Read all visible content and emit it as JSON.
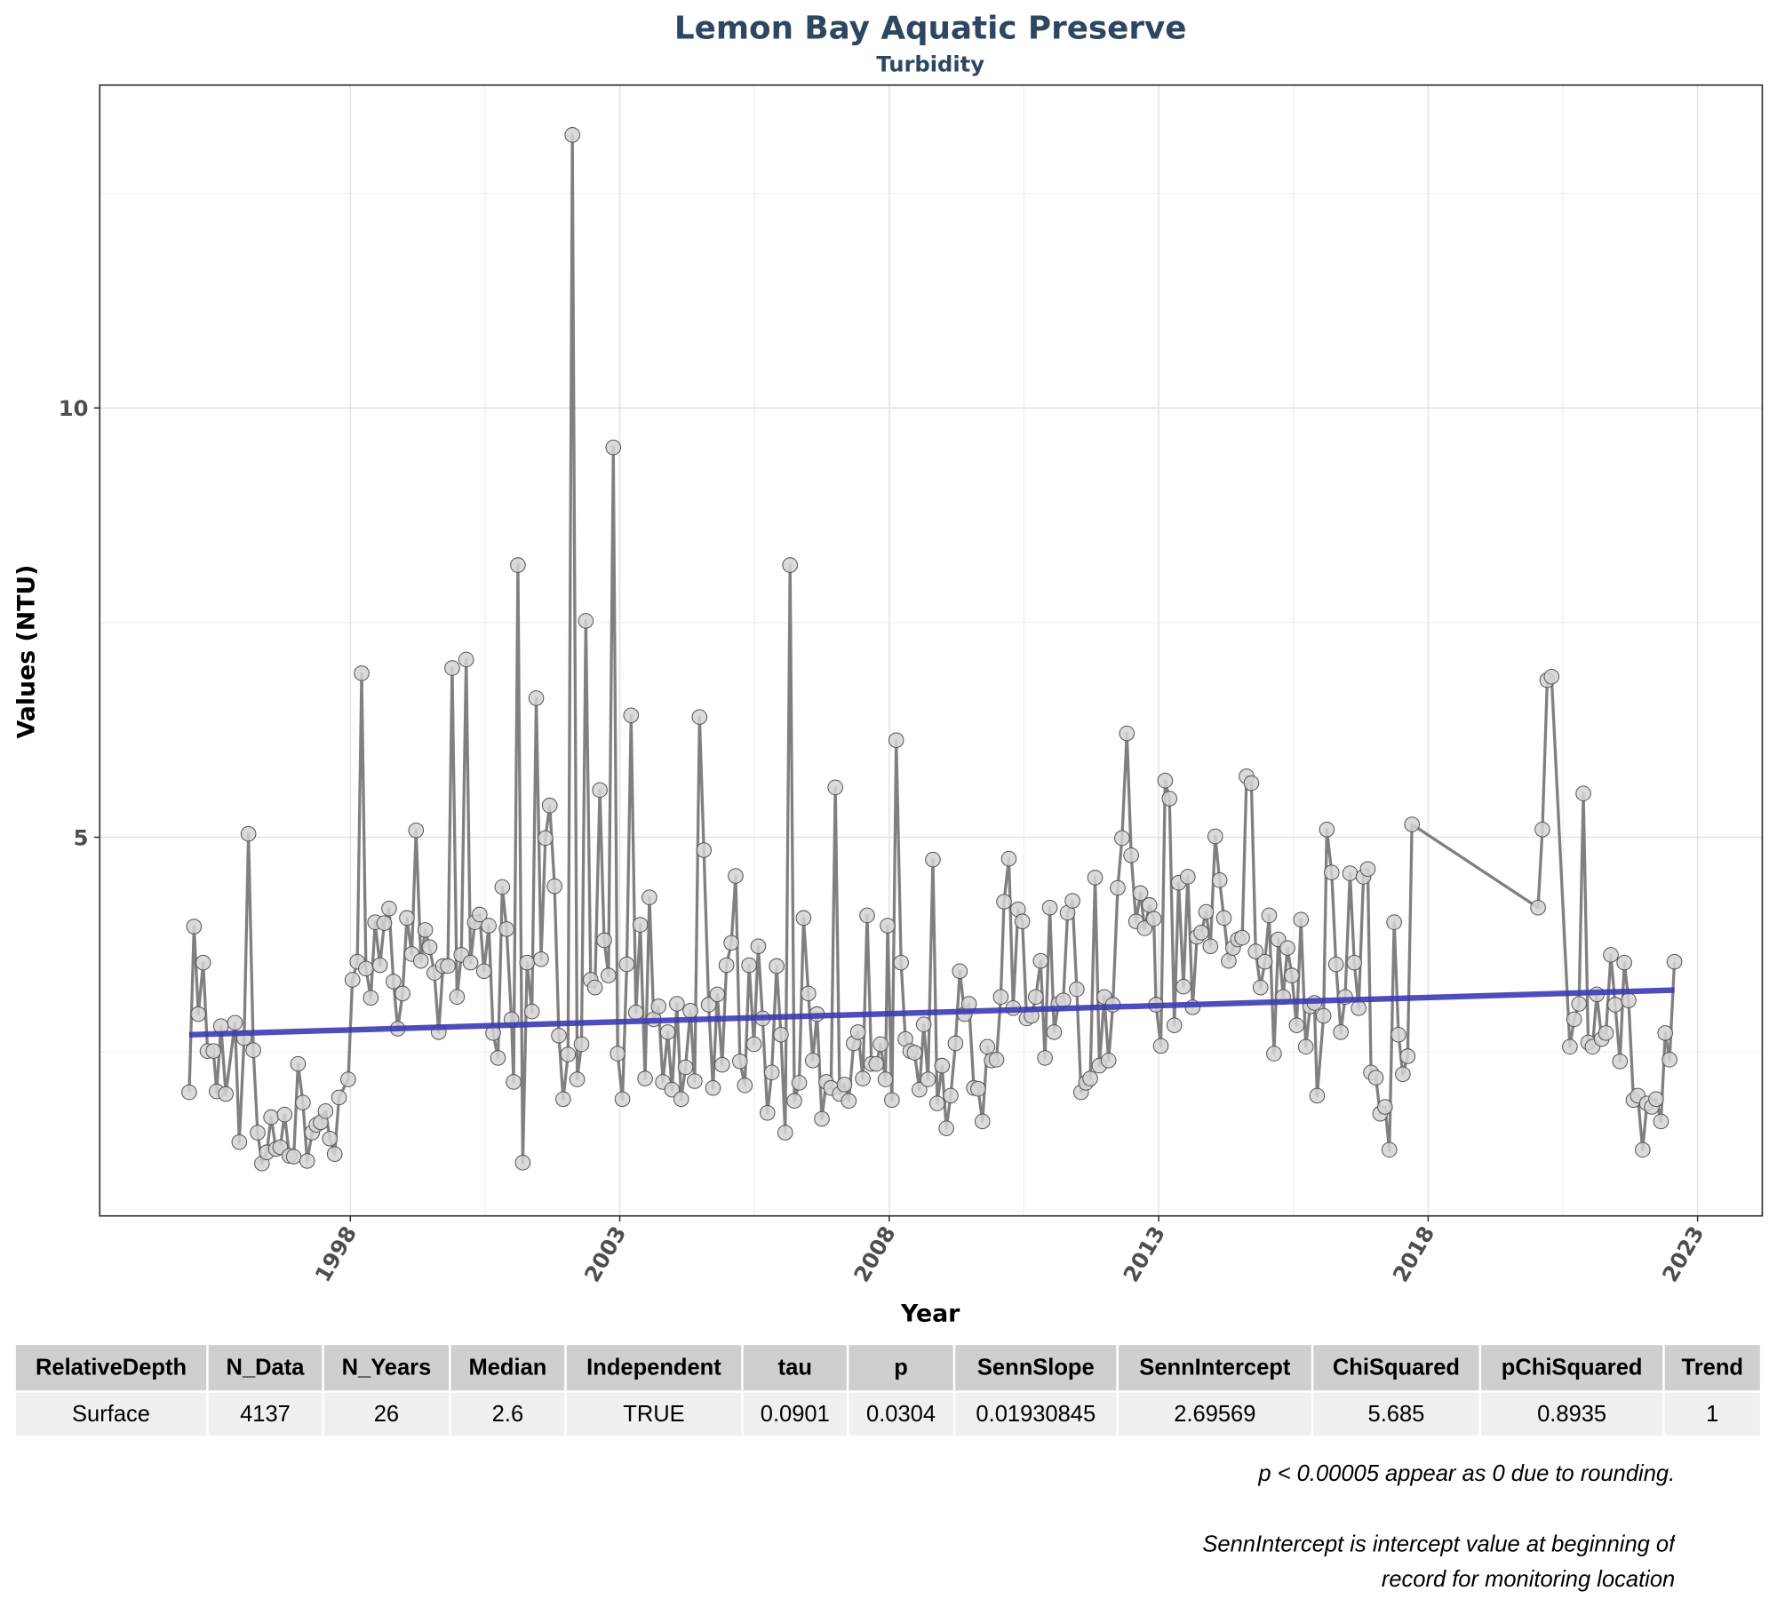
{
  "chart_data": {
    "type": "line",
    "title": "Lemon Bay Aquatic Preserve",
    "subtitle": "Turbidity",
    "x_label": "Year",
    "y_label": "Values (NTU)",
    "xlim": [
      1993.35,
      2024.2
    ],
    "ylim": [
      0.59,
      13.76
    ],
    "xticks": [
      1998,
      2003,
      2008,
      2013,
      2018,
      2023
    ],
    "yticks": [
      5,
      10
    ],
    "minor_xticks": [
      2000.5,
      2005.5,
      2010.5,
      2015.5,
      2020.5
    ],
    "minor_yticks": [
      2.5,
      7.5,
      12.5
    ],
    "grid": true,
    "series": [
      {
        "color": "#808080",
        "marker_color": "#d3d3d3",
        "x": [
          1995.01,
          1995.1,
          1995.18,
          1995.27,
          1995.35,
          1995.46,
          1995.52,
          1995.6,
          1995.69,
          1995.86,
          1995.94,
          1996.03,
          1996.11,
          1996.2,
          1996.28,
          1996.36,
          1996.45,
          1996.53,
          1996.62,
          1996.7,
          1996.78,
          1996.87,
          1996.95,
          1997.03,
          1997.12,
          1997.2,
          1997.29,
          1997.37,
          1997.45,
          1997.54,
          1997.62,
          1997.71,
          1997.79,
          1997.96,
          1998.04,
          1998.13,
          1998.21,
          1998.29,
          1998.38,
          1998.46,
          1998.55,
          1998.63,
          1998.72,
          1998.8,
          1998.88,
          1998.97,
          1999.05,
          1999.14,
          1999.22,
          1999.31,
          1999.39,
          1999.47,
          1999.56,
          1999.64,
          1999.72,
          1999.81,
          1999.89,
          1999.98,
          2000.06,
          2000.15,
          2000.23,
          2000.31,
          2000.4,
          2000.48,
          2000.57,
          2000.65,
          2000.74,
          2000.82,
          2000.9,
          2000.99,
          2001.03,
          2001.11,
          2001.2,
          2001.28,
          2001.37,
          2001.45,
          2001.54,
          2001.62,
          2001.7,
          2001.79,
          2001.87,
          2001.95,
          2002.04,
          2002.12,
          2002.21,
          2002.29,
          2002.37,
          2002.46,
          2002.54,
          2002.63,
          2002.71,
          2002.79,
          2002.88,
          2002.96,
          2003.05,
          2003.13,
          2003.21,
          2003.3,
          2003.38,
          2003.47,
          2003.55,
          2003.63,
          2003.72,
          2003.8,
          2003.89,
          2003.97,
          2004.06,
          2004.14,
          2004.22,
          2004.31,
          2004.39,
          2004.48,
          2004.56,
          2004.65,
          2004.73,
          2004.81,
          2004.9,
          2004.98,
          2005.07,
          2005.15,
          2005.23,
          2005.32,
          2005.4,
          2005.49,
          2005.57,
          2005.65,
          2005.74,
          2005.82,
          2005.91,
          2005.99,
          2006.07,
          2006.16,
          2006.24,
          2006.33,
          2006.41,
          2006.5,
          2006.58,
          2006.66,
          2006.75,
          2006.83,
          2006.92,
          2007.0,
          2007.08,
          2007.17,
          2007.25,
          2007.34,
          2007.42,
          2007.51,
          2007.59,
          2007.67,
          2007.76,
          2007.84,
          2007.93,
          2007.97,
          2008.05,
          2008.13,
          2008.22,
          2008.3,
          2008.39,
          2008.47,
          2008.56,
          2008.64,
          2008.72,
          2008.81,
          2008.89,
          2008.98,
          2009.06,
          2009.14,
          2009.23,
          2009.31,
          2009.4,
          2009.48,
          2009.57,
          2009.65,
          2009.73,
          2009.82,
          2009.9,
          2009.99,
          2010.07,
          2010.13,
          2010.22,
          2010.3,
          2010.39,
          2010.47,
          2010.55,
          2010.64,
          2010.72,
          2010.81,
          2010.89,
          2010.98,
          2011.06,
          2011.14,
          2011.23,
          2011.31,
          2011.4,
          2011.48,
          2011.56,
          2011.65,
          2011.73,
          2011.82,
          2011.9,
          2011.99,
          2012.07,
          2012.15,
          2012.24,
          2012.32,
          2012.41,
          2012.49,
          2012.58,
          2012.66,
          2012.74,
          2012.83,
          2012.91,
          2012.95,
          2013.04,
          2013.12,
          2013.2,
          2013.29,
          2013.37,
          2013.46,
          2013.54,
          2013.63,
          2013.71,
          2013.79,
          2013.88,
          2013.96,
          2014.05,
          2014.13,
          2014.21,
          2014.3,
          2014.38,
          2014.47,
          2014.55,
          2014.63,
          2014.72,
          2014.8,
          2014.89,
          2014.97,
          2015.05,
          2015.14,
          2015.22,
          2015.31,
          2015.39,
          2015.47,
          2015.56,
          2015.64,
          2015.73,
          2015.81,
          2015.89,
          2015.94,
          2016.06,
          2016.12,
          2016.21,
          2016.29,
          2016.38,
          2016.46,
          2016.55,
          2016.63,
          2016.71,
          2016.8,
          2016.88,
          2016.94,
          2017.03,
          2017.11,
          2017.2,
          2017.28,
          2017.37,
          2017.45,
          2017.53,
          2017.62,
          2017.7,
          2020.04,
          2020.12,
          2020.21,
          2020.29,
          2020.63,
          2020.71,
          2020.8,
          2020.88,
          2020.97,
          2021.05,
          2021.13,
          2021.22,
          2021.3,
          2021.39,
          2021.47,
          2021.56,
          2021.64,
          2021.72,
          2021.81,
          2021.89,
          2021.98,
          2022.06,
          2022.15,
          2022.23,
          2022.32,
          2022.4,
          2022.48,
          2022.57
        ],
        "values": [
          2.03,
          3.96,
          2.94,
          3.54,
          2.51,
          2.51,
          2.04,
          2.8,
          2.01,
          2.84,
          1.45,
          2.66,
          5.04,
          2.52,
          1.56,
          1.2,
          1.33,
          1.74,
          1.37,
          1.39,
          1.77,
          1.29,
          1.28,
          2.36,
          1.91,
          1.23,
          1.56,
          1.65,
          1.68,
          1.81,
          1.49,
          1.31,
          1.97,
          2.18,
          3.34,
          3.55,
          6.91,
          3.47,
          3.13,
          4.01,
          3.51,
          4.0,
          4.17,
          3.32,
          2.77,
          3.18,
          4.06,
          3.64,
          5.08,
          3.56,
          3.92,
          3.72,
          3.42,
          2.73,
          3.5,
          3.5,
          6.97,
          3.14,
          3.63,
          7.07,
          3.54,
          4.01,
          4.1,
          3.44,
          3.97,
          2.72,
          2.43,
          4.42,
          3.93,
          2.88,
          2.15,
          8.17,
          1.21,
          3.54,
          2.97,
          6.62,
          3.58,
          4.99,
          5.37,
          4.43,
          2.69,
          1.95,
          2.47,
          13.18,
          2.18,
          2.59,
          7.52,
          3.34,
          3.25,
          5.55,
          3.8,
          3.39,
          9.54,
          2.48,
          1.95,
          3.52,
          6.42,
          2.96,
          3.98,
          2.19,
          4.3,
          2.88,
          3.03,
          2.15,
          2.73,
          2.06,
          3.06,
          1.95,
          2.32,
          2.98,
          2.16,
          6.4,
          4.85,
          3.05,
          2.08,
          3.17,
          2.35,
          3.51,
          3.77,
          4.55,
          2.39,
          2.11,
          3.51,
          2.59,
          3.73,
          2.89,
          1.79,
          2.26,
          3.5,
          2.7,
          1.56,
          8.17,
          1.93,
          2.14,
          4.06,
          3.18,
          2.4,
          2.94,
          1.72,
          2.15,
          2.08,
          5.58,
          2.01,
          2.12,
          1.93,
          2.6,
          2.73,
          2.19,
          4.09,
          2.36,
          2.36,
          2.59,
          2.18,
          3.97,
          1.94,
          6.13,
          3.54,
          2.65,
          2.51,
          2.49,
          2.06,
          2.82,
          2.18,
          4.74,
          1.9,
          2.34,
          1.61,
          1.99,
          2.6,
          3.44,
          2.94,
          3.06,
          2.08,
          2.07,
          1.69,
          2.56,
          2.4,
          2.41,
          3.14,
          4.25,
          4.75,
          3.01,
          4.16,
          4.02,
          2.89,
          2.92,
          3.14,
          3.56,
          2.43,
          4.18,
          2.73,
          3.06,
          3.1,
          4.12,
          4.26,
          3.23,
          2.03,
          2.14,
          2.19,
          4.53,
          2.34,
          3.14,
          2.4,
          3.05,
          4.41,
          4.99,
          6.21,
          4.79,
          4.02,
          4.35,
          3.94,
          4.21,
          4.05,
          3.05,
          2.57,
          5.66,
          5.45,
          2.81,
          4.47,
          3.26,
          4.54,
          3.02,
          3.84,
          3.89,
          4.13,
          3.73,
          5.01,
          4.5,
          4.06,
          3.56,
          3.71,
          3.81,
          3.83,
          5.71,
          5.63,
          3.67,
          3.25,
          3.55,
          4.09,
          2.48,
          3.81,
          3.14,
          3.71,
          3.39,
          2.81,
          4.04,
          2.56,
          3.03,
          3.07,
          1.99,
          2.92,
          5.09,
          4.59,
          3.52,
          2.73,
          3.14,
          4.58,
          3.54,
          3.01,
          4.54,
          4.63,
          2.26,
          2.2,
          1.78,
          1.86,
          1.36,
          4.01,
          2.7,
          2.24,
          2.45,
          5.15,
          4.18,
          5.09,
          6.83,
          6.87,
          2.56,
          2.88,
          3.06,
          5.51,
          2.61,
          2.56,
          3.17,
          2.65,
          2.72,
          3.63,
          3.05,
          2.39,
          3.54,
          3.1,
          1.94,
          1.99,
          1.36,
          1.9,
          1.86,
          1.95,
          1.69,
          2.72,
          2.41,
          3.55
        ]
      },
      {
        "color": "#3a3ab4",
        "x": [
          1995.01,
          2022.57
        ],
        "values": [
          2.7,
          3.22
        ]
      }
    ]
  },
  "table": {
    "columns": [
      "RelativeDepth",
      "N_Data",
      "N_Years",
      "Median",
      "Independent",
      "tau",
      "p",
      "SennSlope",
      "SennIntercept",
      "ChiSquared",
      "pChiSquared",
      "Trend"
    ],
    "rows": [
      [
        "Surface",
        "4137",
        "26",
        "2.6",
        "TRUE",
        "0.0901",
        "0.0304",
        "0.01930845",
        "2.69569",
        "5.685",
        "0.8935",
        "1"
      ]
    ]
  },
  "notes": [
    "p < 0.00005 appear as 0 due to rounding.",
    "SennIntercept is intercept value at beginning of record for monitoring location"
  ]
}
